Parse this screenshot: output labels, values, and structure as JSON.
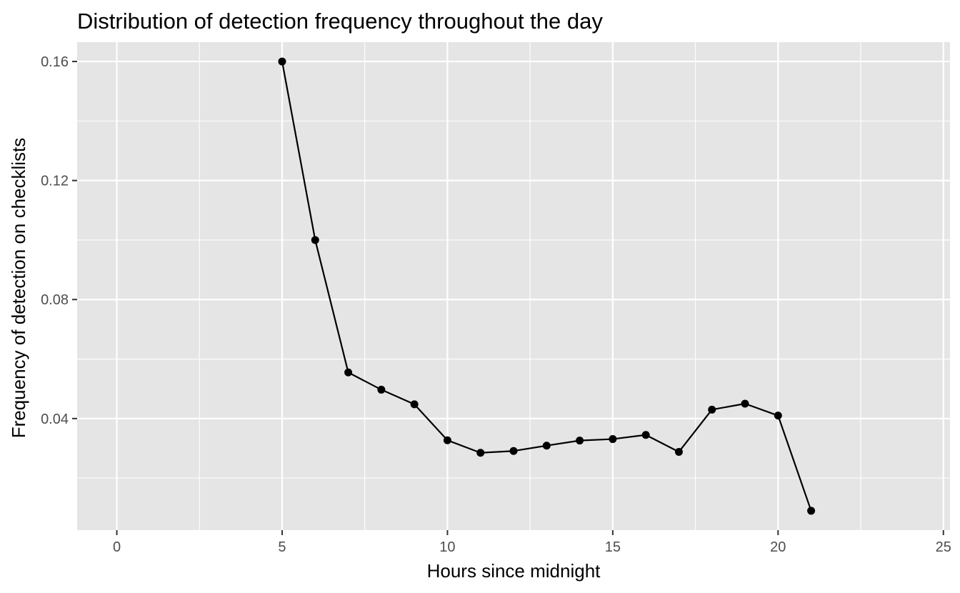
{
  "chart_data": {
    "type": "line",
    "title": "Distribution of detection frequency throughout the day",
    "xlabel": "Hours since midnight",
    "ylabel": "Frequency of detection on checklists",
    "xlim": [
      -1.2,
      25.2
    ],
    "ylim": [
      0.0025,
      0.1665
    ],
    "x_ticks": [
      0,
      5,
      10,
      15,
      20,
      25
    ],
    "x_tick_labels": [
      "0",
      "5",
      "10",
      "15",
      "20",
      "25"
    ],
    "y_ticks": [
      0.04,
      0.08,
      0.12,
      0.16
    ],
    "y_tick_labels": [
      "0.04",
      "0.08",
      "0.12",
      "0.16"
    ],
    "x_minor_ticks": [
      2.5,
      7.5,
      12.5,
      17.5,
      22.5
    ],
    "y_minor_ticks": [
      0.02,
      0.06,
      0.1,
      0.14
    ],
    "grid": true,
    "markers": true,
    "colors": {
      "panel_background": "#e5e5e5",
      "grid": "#ffffff",
      "line": "#000000",
      "points": "#000000",
      "tick_text": "#4d4d4d",
      "title_text": "#000000"
    },
    "series": [
      {
        "x": [
          5,
          6,
          7,
          8,
          9,
          10,
          11,
          12,
          13,
          14,
          15,
          16,
          17,
          18,
          19,
          20,
          21
        ],
        "y": [
          0.16,
          0.1,
          0.0555,
          0.0497,
          0.0448,
          0.0327,
          0.0285,
          0.0291,
          0.0309,
          0.0326,
          0.0331,
          0.0345,
          0.0288,
          0.043,
          0.045,
          0.041,
          0.009
        ]
      }
    ]
  }
}
